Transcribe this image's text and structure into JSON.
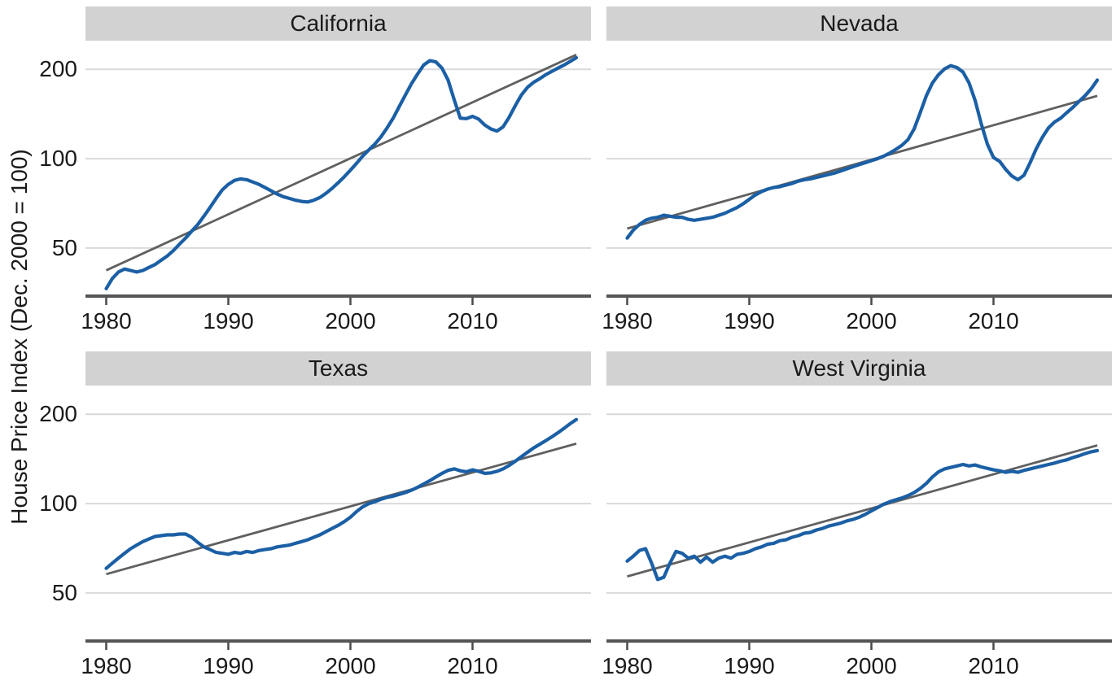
{
  "colors": {
    "line": "#1b5fa5",
    "trend": "#606060",
    "gridline": "#d9d9d9",
    "axis_line": "#555555",
    "tick_mark": "#4b4b4b",
    "strip_bg": "#d2d2d2",
    "text": "#1a1a1a",
    "background": "#ffffff"
  },
  "chart_data": {
    "type": "line",
    "title": "",
    "xlabel": "",
    "ylabel": "House Price Index (Dec. 2000 = 100)",
    "y_scale": "log",
    "grid": "horizontal-only",
    "legend": "none",
    "x_ticks": [
      "1980",
      "1990",
      "2000",
      "2010"
    ],
    "x_tick_years": [
      1980,
      1990,
      2000,
      2010
    ],
    "y_ticks": [
      "200",
      "100",
      "50"
    ],
    "y_tick_values": [
      200,
      100,
      50
    ],
    "x_domain": [
      1978.3,
      2019.7
    ],
    "y_domain": [
      34,
      250
    ],
    "x_start": 1980,
    "x_step": 0.5,
    "x_end": 2018.5,
    "trend": "ols-log-linear",
    "facets": [
      {
        "label": "California",
        "values": [
          36.5,
          39.5,
          41.5,
          42.5,
          42,
          41.5,
          42,
          43,
          44,
          45.5,
          47,
          49,
          51.5,
          54,
          57,
          60,
          64,
          68.5,
          73.5,
          78.5,
          82,
          84.5,
          85.5,
          85,
          83.5,
          82,
          80,
          78,
          76,
          74.5,
          73.5,
          72.5,
          71.8,
          71.5,
          72.5,
          74,
          76.5,
          79.5,
          83,
          87,
          91.5,
          96.5,
          102,
          107,
          112,
          118.5,
          127,
          137,
          150,
          164,
          179,
          193,
          207,
          214,
          212,
          202,
          184,
          158,
          137,
          136.5,
          139,
          136,
          130,
          126,
          124,
          128,
          138,
          151,
          164,
          174,
          181,
          186,
          192,
          197,
          202,
          207,
          213,
          219
        ]
      },
      {
        "label": "Nevada",
        "values": [
          54,
          57.5,
          60,
          62,
          63,
          63.5,
          64.5,
          64,
          63.5,
          63.5,
          62.5,
          62,
          62.5,
          63,
          63.5,
          64.5,
          65.5,
          67,
          68.5,
          70.5,
          73,
          75.5,
          77.5,
          79,
          80,
          80.5,
          81.5,
          82.5,
          84,
          85,
          85.5,
          86.5,
          87.5,
          88.5,
          89.5,
          91,
          92.5,
          94,
          95.5,
          97,
          98.5,
          100,
          102,
          104.5,
          107.5,
          111,
          116,
          126,
          143,
          163,
          180,
          192,
          201,
          206,
          203,
          196,
          180,
          157,
          131,
          112,
          101,
          98,
          92,
          87.5,
          85,
          88,
          97,
          108,
          118,
          127,
          133,
          137,
          143,
          149,
          156,
          163,
          172,
          184
        ]
      },
      {
        "label": "Texas",
        "values": [
          60.5,
          63,
          65.5,
          68,
          70.5,
          72.5,
          74.5,
          76,
          77.5,
          78,
          78.5,
          78.5,
          79,
          79,
          77,
          74,
          71.5,
          70,
          68.5,
          68,
          67.5,
          68.5,
          68,
          69,
          68.5,
          69.5,
          70,
          70.5,
          71.5,
          72,
          72.5,
          73.5,
          74.5,
          75.5,
          77,
          78.5,
          80.5,
          82.5,
          84.5,
          87,
          90,
          94,
          97.5,
          100,
          101.5,
          103.5,
          105,
          106,
          107.5,
          109,
          111,
          113.5,
          116.5,
          119.5,
          123,
          126.5,
          129.5,
          131,
          129,
          128,
          130,
          128.5,
          126.5,
          127,
          128.5,
          131,
          134.5,
          139,
          144,
          149,
          154,
          158.5,
          163,
          168,
          173.5,
          179.5,
          186,
          192
        ]
      },
      {
        "label": "West Virginia",
        "values": [
          64,
          66.5,
          69.5,
          70.5,
          63,
          55.5,
          56.5,
          63,
          69,
          68,
          65.5,
          66.5,
          63.5,
          66,
          63.5,
          65.5,
          66.5,
          65.5,
          67.5,
          68,
          69,
          70.5,
          71.5,
          73,
          73.5,
          75,
          75.5,
          77,
          78,
          79.5,
          80,
          81.5,
          82.5,
          84,
          85,
          86,
          87.5,
          88.5,
          90,
          92,
          94.5,
          97,
          99.5,
          101.5,
          103,
          104.5,
          106.5,
          109,
          112.5,
          117,
          123,
          128,
          131,
          132.5,
          134,
          135.5,
          134,
          135,
          133,
          131.5,
          130,
          129,
          127.5,
          128.5,
          127.5,
          129.5,
          131,
          132.5,
          134,
          135.5,
          137,
          139,
          140.5,
          143,
          145,
          147.5,
          149.5,
          151
        ]
      }
    ]
  },
  "layout_note": "2x2 faceted line chart, blue HPI series with gray log-linear trend per facet"
}
